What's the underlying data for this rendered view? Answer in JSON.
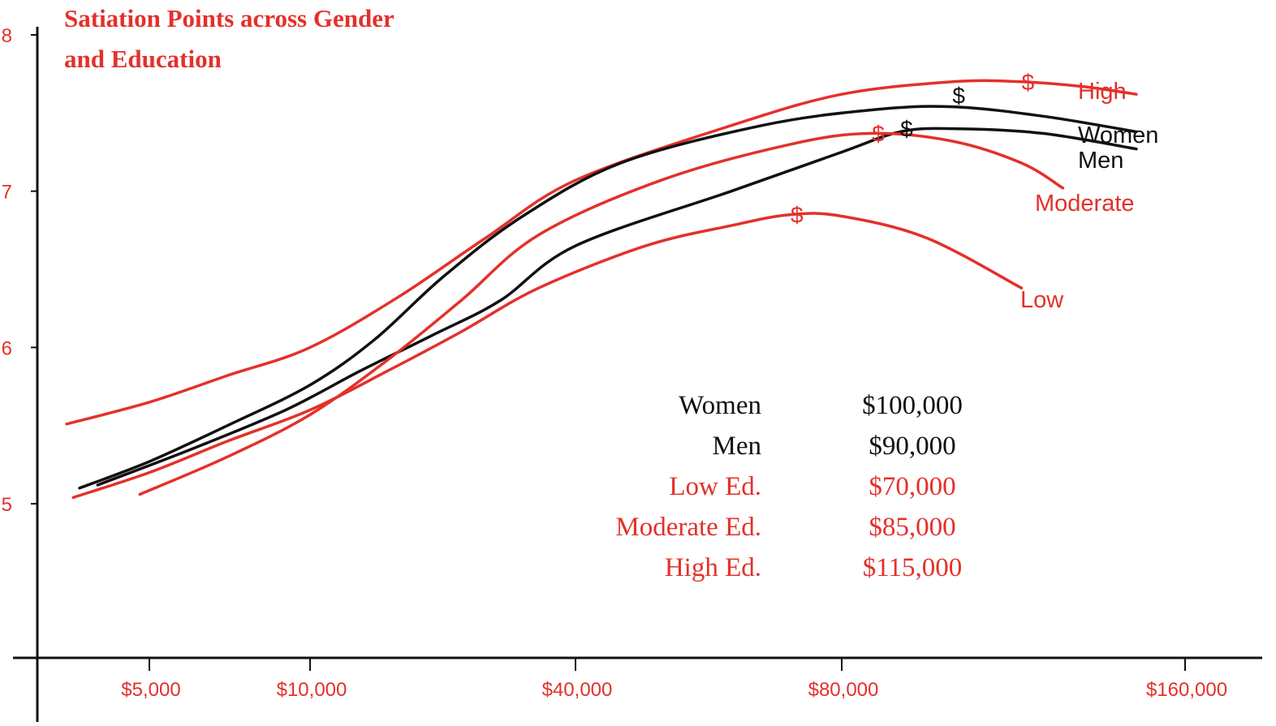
{
  "colors": {
    "red": "#e3312a",
    "black": "#111111"
  },
  "chart_data": {
    "type": "line",
    "title_lines": [
      "Satiation Points across Gender",
      "and Education"
    ],
    "xlabel": "",
    "ylabel": "",
    "x_scale": "log",
    "xlim": [
      3000,
      180000
    ],
    "ylim": [
      4,
      8
    ],
    "yticks": [
      {
        "value": 8,
        "label": "8"
      },
      {
        "value": 7,
        "label": "7"
      },
      {
        "value": 6,
        "label": "6"
      },
      {
        "value": 5,
        "label": "5"
      }
    ],
    "xticks": [
      {
        "value": 5000,
        "label": "$5,000"
      },
      {
        "value": 10000,
        "label": "$10,000"
      },
      {
        "value": 40000,
        "label": "$40,000"
      },
      {
        "value": 80000,
        "label": "$80,000"
      },
      {
        "value": 160000,
        "label": "$160,000"
      }
    ],
    "grid": false,
    "series": [
      {
        "name": "High",
        "color": "red",
        "points": [
          [
            3500,
            5.51
          ],
          [
            5000,
            5.65
          ],
          [
            7000,
            5.82
          ],
          [
            10000,
            6.0
          ],
          [
            16000,
            6.33
          ],
          [
            25000,
            6.7
          ],
          [
            40000,
            7.07
          ],
          [
            60000,
            7.42
          ],
          [
            80000,
            7.62
          ],
          [
            100000,
            7.7
          ],
          [
            115000,
            7.7
          ],
          [
            130000,
            7.67
          ],
          [
            145000,
            7.62
          ]
        ],
        "satiation": [
          115000,
          7.7
        ]
      },
      {
        "name": "Women",
        "color": "black",
        "points": [
          [
            3700,
            5.1
          ],
          [
            5000,
            5.27
          ],
          [
            7000,
            5.5
          ],
          [
            10000,
            5.76
          ],
          [
            14000,
            6.05
          ],
          [
            20000,
            6.45
          ],
          [
            30000,
            6.83
          ],
          [
            45000,
            7.18
          ],
          [
            65000,
            7.42
          ],
          [
            85000,
            7.52
          ],
          [
            100000,
            7.54
          ],
          [
            120000,
            7.48
          ],
          [
            145000,
            7.38
          ]
        ],
        "satiation": [
          100000,
          7.54
        ]
      },
      {
        "name": "Men",
        "color": "black",
        "points": [
          [
            4000,
            5.12
          ],
          [
            6000,
            5.35
          ],
          [
            9000,
            5.6
          ],
          [
            13000,
            5.85
          ],
          [
            19000,
            6.08
          ],
          [
            27000,
            6.3
          ],
          [
            40000,
            6.65
          ],
          [
            60000,
            7.0
          ],
          [
            80000,
            7.25
          ],
          [
            90000,
            7.38
          ],
          [
            100000,
            7.4
          ],
          [
            120000,
            7.37
          ],
          [
            145000,
            7.27
          ]
        ],
        "satiation": [
          90000,
          7.4
        ]
      },
      {
        "name": "Moderate",
        "color": "red",
        "points": [
          [
            4800,
            5.06
          ],
          [
            7000,
            5.3
          ],
          [
            10000,
            5.57
          ],
          [
            15000,
            5.92
          ],
          [
            22000,
            6.3
          ],
          [
            33000,
            6.72
          ],
          [
            50000,
            7.07
          ],
          [
            70000,
            7.3
          ],
          [
            85000,
            7.37
          ],
          [
            100000,
            7.32
          ],
          [
            115000,
            7.18
          ],
          [
            125000,
            7.02
          ]
        ],
        "satiation": [
          85000,
          7.37
        ]
      },
      {
        "name": "Low",
        "color": "red",
        "points": [
          [
            3600,
            5.04
          ],
          [
            5000,
            5.2
          ],
          [
            7000,
            5.4
          ],
          [
            10000,
            5.6
          ],
          [
            15000,
            5.85
          ],
          [
            22000,
            6.1
          ],
          [
            33000,
            6.38
          ],
          [
            48000,
            6.65
          ],
          [
            60000,
            6.78
          ],
          [
            70000,
            6.85
          ],
          [
            80000,
            6.84
          ],
          [
            95000,
            6.7
          ],
          [
            115000,
            6.38
          ]
        ],
        "satiation": [
          70000,
          6.85
        ]
      }
    ],
    "table": [
      {
        "label": "Women",
        "value": "$100,000",
        "color": "black"
      },
      {
        "label": "Men",
        "value": "$90,000",
        "color": "black"
      },
      {
        "label": "Low Ed.",
        "value": "$70,000",
        "color": "red"
      },
      {
        "label": "Moderate Ed.",
        "value": "$85,000",
        "color": "red"
      },
      {
        "label": "High Ed.",
        "value": "$115,000",
        "color": "red"
      }
    ],
    "marker_symbol": "$"
  }
}
